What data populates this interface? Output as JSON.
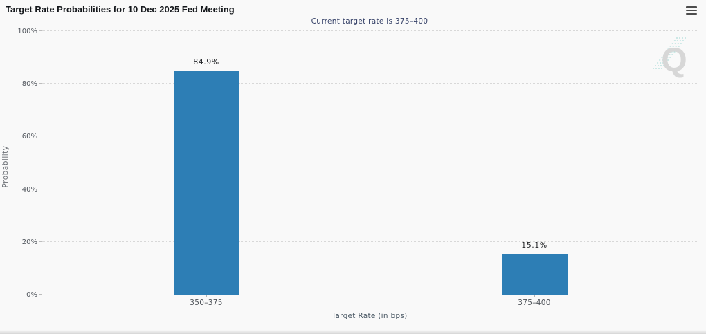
{
  "widget": {
    "menu_icon": "hamburger-menu"
  },
  "chart_data": {
    "type": "bar",
    "title": "Target Rate Probabilities for 10 Dec 2025 Fed Meeting",
    "subtitle": "Current target rate is 375–400",
    "xlabel": "Target Rate (in bps)",
    "ylabel": "Probability",
    "categories": [
      "350–375",
      "375–400"
    ],
    "values": [
      84.9,
      15.1
    ],
    "value_labels": [
      "84.9%",
      "15.1%"
    ],
    "ylim": [
      0,
      100
    ],
    "yticks": [
      "0%",
      "20%",
      "40%",
      "60%",
      "80%",
      "100%"
    ],
    "grid": "horizontal-dotted",
    "legend": "none",
    "bar_color": "#2d7eb5",
    "subtitle_color": "#333f66",
    "watermark_letter": "Q",
    "watermark_line_color": "#a9dcd8"
  }
}
